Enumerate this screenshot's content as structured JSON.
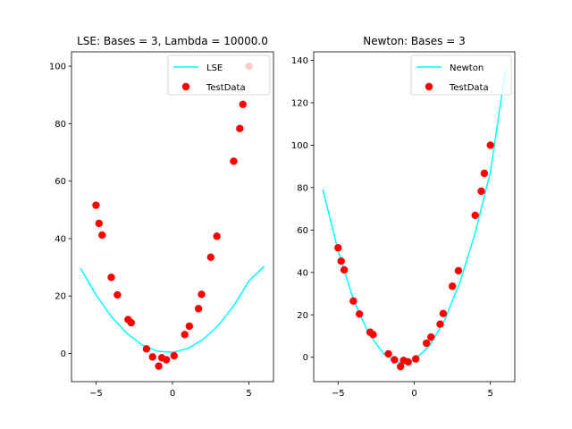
{
  "chart_data": [
    {
      "type": "scatter",
      "title": "LSE: Bases = 3, Lambda = 10000.0",
      "xlabel": "",
      "ylabel": "",
      "xlim": [
        -6.6,
        6.6
      ],
      "ylim": [
        -9.8,
        105
      ],
      "xticks": [
        -5,
        0,
        5
      ],
      "xtick_labels": [
        "−5",
        "0",
        "5"
      ],
      "yticks": [
        0,
        20,
        40,
        60,
        80,
        100
      ],
      "ytick_labels": [
        "0",
        "20",
        "40",
        "60",
        "80",
        "100"
      ],
      "grid": false,
      "legend_position": "upper right",
      "series": [
        {
          "name": "LSE",
          "kind": "line",
          "color": "#00ffff",
          "x": [
            -6,
            -5,
            -4,
            -3,
            -2,
            -1,
            0,
            1,
            2,
            3,
            4,
            5,
            6
          ],
          "y": [
            29.6,
            20.4,
            12.9,
            7.1,
            3.0,
            0.8,
            0.4,
            1.7,
            4.9,
            9.8,
            16.6,
            25.3,
            30.4
          ]
        },
        {
          "name": "TestData",
          "kind": "scatter",
          "color": "#ff0000",
          "x": [
            -5.0,
            -4.8,
            -4.6,
            -4.0,
            -3.6,
            -2.9,
            -2.7,
            -1.7,
            -1.3,
            -0.9,
            -0.7,
            -0.4,
            0.1,
            0.8,
            1.1,
            1.7,
            1.9,
            2.5,
            2.9,
            4.0,
            4.4,
            4.6,
            5.0
          ],
          "y": [
            51.6,
            45.3,
            41.2,
            26.5,
            20.4,
            11.8,
            10.7,
            1.6,
            -1.2,
            -4.4,
            -1.5,
            -2.2,
            -0.8,
            6.6,
            9.5,
            15.6,
            20.6,
            33.5,
            40.8,
            66.9,
            78.3,
            86.7,
            100.0
          ]
        }
      ]
    },
    {
      "type": "scatter",
      "title": "Newton: Bases = 3",
      "xlabel": "",
      "ylabel": "",
      "xlim": [
        -6.6,
        6.6
      ],
      "ylim": [
        -11.5,
        144
      ],
      "xticks": [
        -5,
        0,
        5
      ],
      "xtick_labels": [
        "−5",
        "0",
        "5"
      ],
      "yticks": [
        0,
        20,
        40,
        60,
        80,
        100,
        120,
        140
      ],
      "ytick_labels": [
        "0",
        "20",
        "40",
        "60",
        "80",
        "100",
        "120",
        "140"
      ],
      "grid": false,
      "legend_position": "upper right",
      "series": [
        {
          "name": "Newton",
          "kind": "line",
          "color": "#00ffff",
          "x": [
            -6,
            -5,
            -4,
            -3,
            -2,
            -1,
            0,
            1,
            2,
            3,
            4,
            5,
            6
          ],
          "y": [
            79,
            50.4,
            27.4,
            11.2,
            1.6,
            -2.6,
            -1.4,
            5.4,
            17.6,
            35.4,
            58.6,
            87.4,
            136
          ]
        },
        {
          "name": "TestData",
          "kind": "scatter",
          "color": "#ff0000",
          "x": [
            -5.0,
            -4.8,
            -4.6,
            -4.0,
            -3.6,
            -2.9,
            -2.7,
            -1.7,
            -1.3,
            -0.9,
            -0.7,
            -0.4,
            0.1,
            0.8,
            1.1,
            1.7,
            1.9,
            2.5,
            2.9,
            4.0,
            4.4,
            4.6,
            5.0
          ],
          "y": [
            51.6,
            45.3,
            41.2,
            26.5,
            20.4,
            11.8,
            10.7,
            1.6,
            -1.2,
            -4.4,
            -1.5,
            -2.2,
            -0.8,
            6.6,
            9.5,
            15.6,
            20.6,
            33.5,
            40.8,
            66.9,
            78.3,
            86.7,
            100.0
          ]
        }
      ]
    }
  ]
}
